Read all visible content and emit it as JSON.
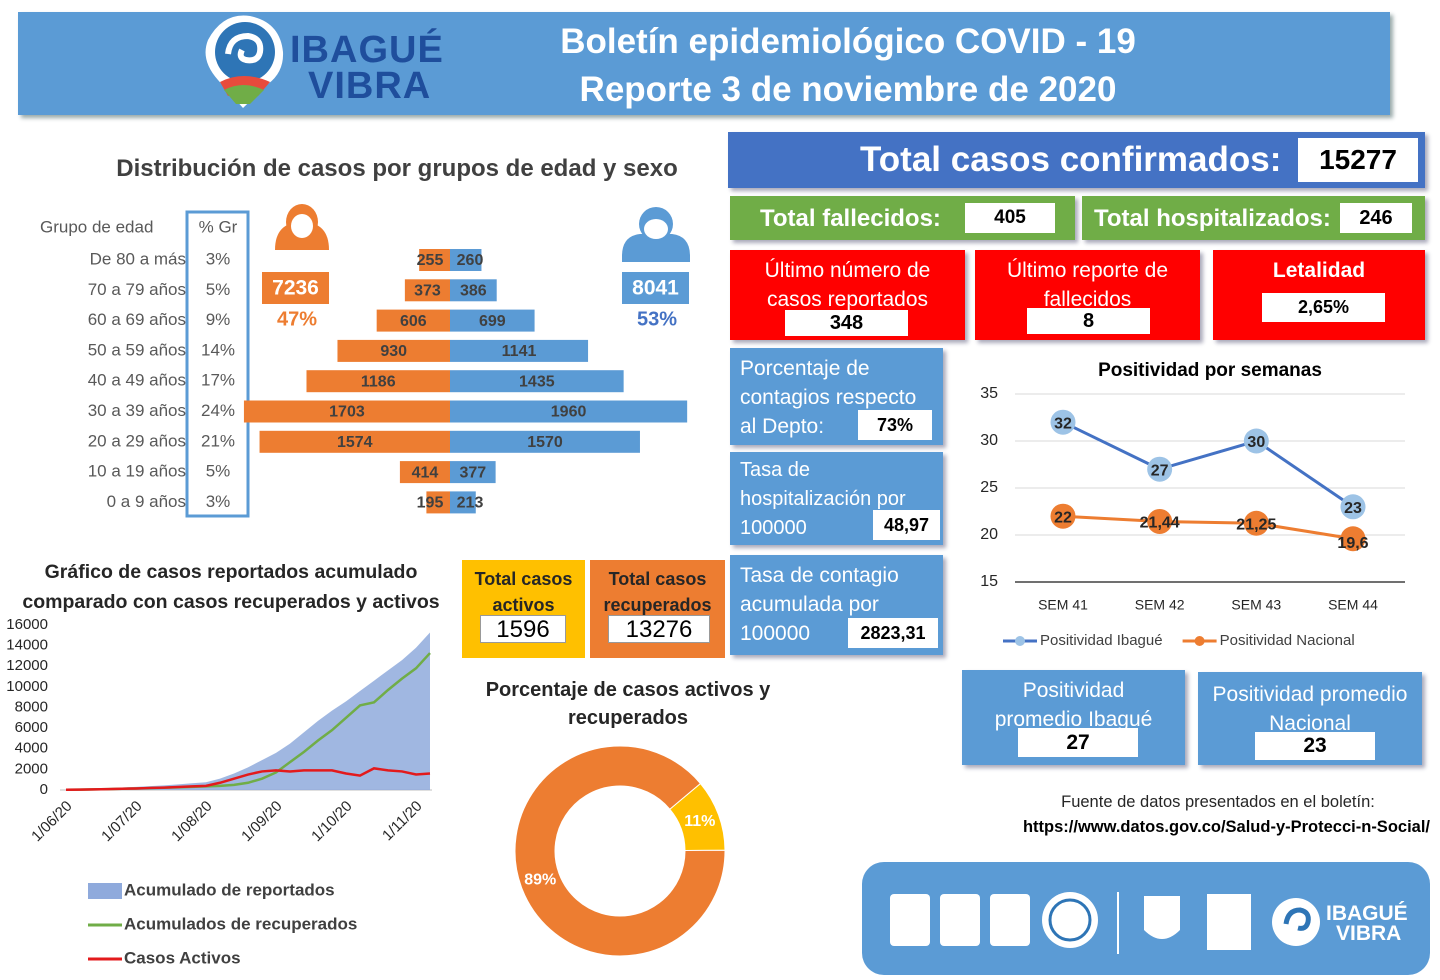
{
  "header": {
    "logo": [
      "IBAGUÉ",
      "VIBRA"
    ],
    "title": [
      "Boletín epidemiológico COVID - 19",
      "Reporte 3 de noviembre de 2020"
    ]
  },
  "summary": {
    "confirmed": {
      "label": "Total casos confirmados:",
      "value": 15277
    },
    "deaths": {
      "label": "Total fallecidos:",
      "value": 405
    },
    "hospitalized": {
      "label": "Total hospitalizados:",
      "value": 246
    },
    "last_cases": {
      "label": "Último número de casos reportados",
      "value": 348
    },
    "last_deaths": {
      "label": "Último reporte de fallecidos",
      "value": 8
    },
    "lethality": {
      "label": "Letalidad",
      "value": "2,65%"
    },
    "dept_share": {
      "label": "Porcentaje de contagios respecto al Depto:",
      "value": "73%"
    },
    "hosp_rate": {
      "label": "Tasa de hospitalización por 100000",
      "value": "48,97"
    },
    "infection_rate": {
      "label": "Tasa de contagio acumulada por 100000",
      "value": "2823,31"
    },
    "active": {
      "label": "Total casos activos",
      "value": 1596
    },
    "recovered": {
      "label": "Total casos recuperados",
      "value": 13276
    },
    "avg_ibague": {
      "label": "Positividad promedio Ibagué",
      "value": 27
    },
    "avg_national": {
      "label": "Positividad promedio Nacional",
      "value": 23
    }
  },
  "source": {
    "label": "Fuente de datos presentados en el boletín:",
    "url": "https://www.datos.gov.co/Salud-y-Protecci-n-Social/"
  },
  "footer": {
    "logo": [
      "IBAGUÉ",
      "VIBRA"
    ]
  },
  "chart_data": [
    {
      "type": "bar",
      "horizontal": true,
      "title": "Distribución de casos por grupos de edad y sexo",
      "category_header": "Grupo de edad",
      "share_header": "% Gr",
      "categories": [
        "De 80 a más",
        "70 a 79 años",
        "60 a 69 años",
        "50 a 59 años",
        "40 a 49 años",
        "30 a 39 años",
        "20 a 29 años",
        "10 a 19 años",
        "0 a 9 años"
      ],
      "shares": [
        "3%",
        "5%",
        "9%",
        "14%",
        "17%",
        "24%",
        "21%",
        "5%",
        "3%"
      ],
      "xlim": [
        0,
        2000
      ],
      "series": [
        {
          "side": "left",
          "color": "#ed7d31",
          "values": [
            255,
            373,
            606,
            930,
            1186,
            1703,
            1574,
            414,
            195
          ],
          "total": 7236,
          "total_share": "47%"
        },
        {
          "side": "right",
          "color": "#5b9bd5",
          "values": [
            260,
            386,
            699,
            1141,
            1435,
            1960,
            1570,
            377,
            213
          ],
          "total": 8041,
          "total_share": "53%"
        }
      ]
    },
    {
      "type": "line",
      "title": "Gráfico de casos reportados acumulado comparado con casos recuperados y activos",
      "categories": [
        "1/06/20",
        null,
        null,
        null,
        null,
        "1/07/20",
        null,
        null,
        null,
        null,
        "1/08/20",
        null,
        null,
        null,
        null,
        "1/09/20",
        null,
        null,
        null,
        null,
        "1/10/20",
        null,
        null,
        null,
        null,
        "1/11/20",
        null
      ],
      "ylim": [
        0,
        16000
      ],
      "yticks": [
        0,
        2000,
        4000,
        6000,
        8000,
        10000,
        12000,
        14000,
        16000
      ],
      "legend": "bottom",
      "series": [
        {
          "name": "Acumulado de reportados",
          "color": "#8faadc",
          "fill": true,
          "values": [
            50,
            80,
            120,
            180,
            240,
            300,
            380,
            450,
            550,
            650,
            750,
            1100,
            1600,
            2200,
            2900,
            3600,
            4500,
            5600,
            6700,
            7700,
            8600,
            9600,
            10600,
            11600,
            12600,
            13800,
            15277
          ]
        },
        {
          "name": "Acumulados de recuperados",
          "color": "#70ad47",
          "fill": false,
          "values": [
            20,
            40,
            60,
            90,
            120,
            150,
            180,
            220,
            260,
            300,
            350,
            400,
            500,
            700,
            1100,
            1700,
            2700,
            3700,
            4800,
            5800,
            7000,
            8200,
            8500,
            9700,
            10800,
            11800,
            13276
          ]
        },
        {
          "name": "Casos Activos",
          "color": "#e31a1c",
          "fill": false,
          "values": [
            30,
            40,
            60,
            90,
            120,
            150,
            200,
            230,
            290,
            350,
            400,
            700,
            1100,
            1500,
            1800,
            1900,
            1800,
            1900,
            1900,
            1900,
            1600,
            1400,
            2100,
            1900,
            1800,
            1500,
            1596
          ]
        }
      ]
    },
    {
      "type": "pie",
      "donut": true,
      "title": "Porcentaje de casos activos y recuperados",
      "values": [
        11,
        89
      ],
      "value_labels": [
        "11%",
        "89%"
      ],
      "colors": [
        "#ffc000",
        "#ed7d31"
      ]
    },
    {
      "type": "line",
      "title": "Positividad por semanas",
      "categories": [
        "SEM 41",
        "SEM 42",
        "SEM 43",
        "SEM 44"
      ],
      "ylim": [
        15,
        35
      ],
      "yticks": [
        15,
        20,
        25,
        30,
        35
      ],
      "grid": true,
      "legend": "bottom",
      "series": [
        {
          "name": "Positividad Ibagué",
          "color": "#4472c4",
          "marker_color": "#9dc3e6",
          "values": [
            32,
            27,
            30,
            23
          ]
        },
        {
          "name": "Positividad Nacional",
          "color": "#ed7d31",
          "marker_color": "#ed7d31",
          "values": [
            22,
            21.44,
            21.25,
            19.6
          ],
          "value_labels": [
            "22",
            "21,44",
            "21,25",
            "19,6"
          ]
        }
      ]
    }
  ]
}
